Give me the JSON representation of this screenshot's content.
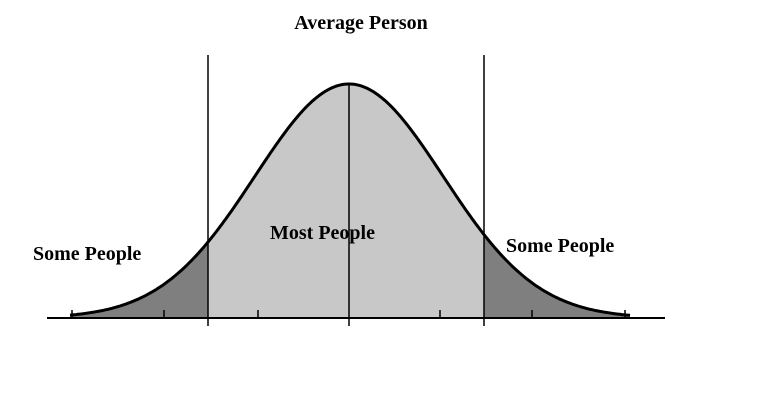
{
  "title": "Average Person",
  "labels": {
    "left": "Some People",
    "center": "Most People",
    "right": "Some People"
  }
}
